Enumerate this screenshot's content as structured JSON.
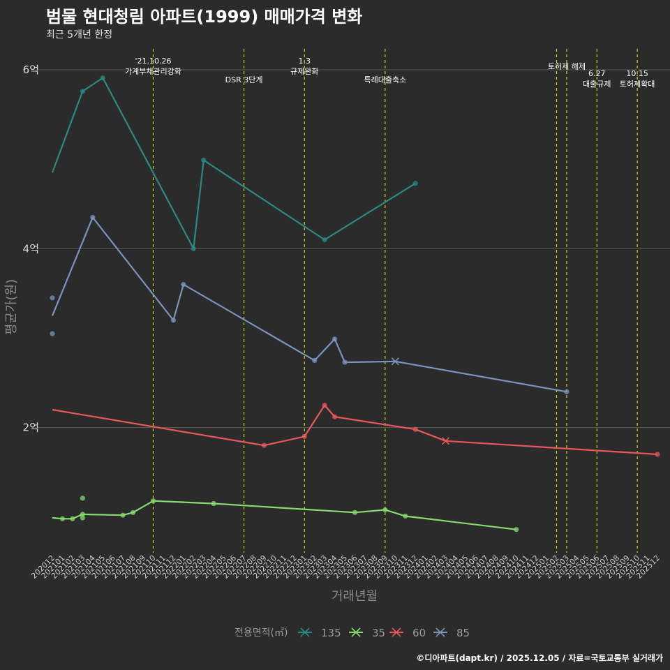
{
  "header": {
    "title": "범물 현대청림 아파트(1999) 매매가격 변화",
    "subtitle": "최근 5개년 한정"
  },
  "footer": {
    "caption": "©디아파트(dapt.kr) / 2025.12.05 / 자료=국토교통부 실거래가"
  },
  "colors": {
    "135": "#2a8a84",
    "35": "#86dc6e",
    "60": "#e85858",
    "85": "#7a94bf",
    "event_line": "#e6e600",
    "grid": "#5a5a5a"
  },
  "chart_data": {
    "type": "line",
    "title": "범물 현대청림 아파트(1999) 매매가격 변화",
    "xlabel": "거래년월",
    "ylabel": "평균가(원)",
    "ylim": [
      0.6,
      6.25
    ],
    "yunit": "억",
    "yticks": [
      {
        "v": 2,
        "label": "2억"
      },
      {
        "v": 4,
        "label": "4억"
      },
      {
        "v": 6,
        "label": "6억"
      }
    ],
    "categories": [
      "202012",
      "202101",
      "202102",
      "202103",
      "202104",
      "202105",
      "202106",
      "202107",
      "202108",
      "202109",
      "202110",
      "202111",
      "202112",
      "202201",
      "202202",
      "202203",
      "202204",
      "202205",
      "202206",
      "202207",
      "202208",
      "202209",
      "202210",
      "202211",
      "202212",
      "202301",
      "202302",
      "202303",
      "202304",
      "202305",
      "202306",
      "202307",
      "202308",
      "202309",
      "202310",
      "202311",
      "202312",
      "202401",
      "202402",
      "202403",
      "202404",
      "202405",
      "202406",
      "202407",
      "202408",
      "202409",
      "202410",
      "202411",
      "202412",
      "202501",
      "202502",
      "202503",
      "202504",
      "202505",
      "202506",
      "202507",
      "202508",
      "202509",
      "202510",
      "202511",
      "202512"
    ],
    "legend": {
      "title": "전용면적(㎡)",
      "position": "bottom",
      "entries": [
        "135",
        "35",
        "60",
        "85"
      ]
    },
    "series": [
      {
        "name": "135",
        "line": [
          [
            "202012",
            4.85
          ],
          [
            "202103",
            5.76
          ],
          [
            "202105",
            5.91
          ],
          [
            "202202",
            4.0
          ],
          [
            "202203",
            4.99
          ],
          [
            "202303",
            4.1
          ],
          [
            "202312",
            4.73
          ]
        ],
        "points": [
          [
            "202103",
            5.76
          ],
          [
            "202105",
            5.91
          ],
          [
            "202202",
            4.0
          ],
          [
            "202203",
            4.99
          ],
          [
            "202303",
            4.1
          ],
          [
            "202312",
            4.73
          ]
        ],
        "crosses": []
      },
      {
        "name": "35",
        "line": [
          [
            "202012",
            0.99
          ],
          [
            "202101",
            0.98
          ],
          [
            "202102",
            0.98
          ],
          [
            "202103",
            1.03
          ],
          [
            "202107",
            1.02
          ],
          [
            "202108",
            1.05
          ],
          [
            "202110",
            1.18
          ],
          [
            "202204",
            1.15
          ],
          [
            "202306",
            1.05
          ],
          [
            "202309",
            1.08
          ],
          [
            "202311",
            1.01
          ],
          [
            "202410",
            0.86
          ]
        ],
        "points": [
          [
            "202101",
            0.98
          ],
          [
            "202102",
            0.98
          ],
          [
            "202103",
            1.21
          ],
          [
            "202103",
            0.99
          ],
          [
            "202103",
            1.03
          ],
          [
            "202107",
            1.02
          ],
          [
            "202108",
            1.05
          ],
          [
            "202110",
            1.18
          ],
          [
            "202204",
            1.15
          ],
          [
            "202306",
            1.05
          ],
          [
            "202309",
            1.08
          ],
          [
            "202311",
            1.01
          ],
          [
            "202410",
            0.86
          ]
        ],
        "crosses": []
      },
      {
        "name": "60",
        "line": [
          [
            "202012",
            2.2
          ],
          [
            "202209",
            1.8
          ],
          [
            "202301",
            1.9
          ],
          [
            "202303",
            2.25
          ],
          [
            "202304",
            2.12
          ],
          [
            "202312",
            1.98
          ],
          [
            "202403",
            1.85
          ],
          [
            "202512",
            1.7
          ]
        ],
        "points": [
          [
            "202209",
            1.8
          ],
          [
            "202301",
            1.9
          ],
          [
            "202303",
            2.25
          ],
          [
            "202304",
            2.12
          ],
          [
            "202312",
            1.98
          ],
          [
            "202512",
            1.7
          ]
        ],
        "crosses": [
          [
            "202403",
            1.85
          ]
        ]
      },
      {
        "name": "85",
        "line": [
          [
            "202012",
            3.25
          ],
          [
            "202104",
            4.35
          ],
          [
            "202112",
            3.2
          ],
          [
            "202201",
            3.6
          ],
          [
            "202302",
            2.75
          ],
          [
            "202304",
            2.99
          ],
          [
            "202305",
            2.73
          ],
          [
            "202310",
            2.74
          ],
          [
            "202503",
            2.4
          ]
        ],
        "points": [
          [
            "202012",
            3.45
          ],
          [
            "202012",
            3.05
          ],
          [
            "202104",
            4.35
          ],
          [
            "202112",
            3.2
          ],
          [
            "202201",
            3.6
          ],
          [
            "202302",
            2.75
          ],
          [
            "202304",
            2.99
          ],
          [
            "202305",
            2.73
          ],
          [
            "202503",
            2.4
          ]
        ],
        "crosses": [
          [
            "202310",
            2.74
          ]
        ]
      }
    ],
    "events": [
      {
        "x": "202110",
        "lines": [
          "'21.10.26",
          "가계부채관리강화"
        ],
        "row": 0
      },
      {
        "x": "202207",
        "lines": [
          "DSR 3단계"
        ],
        "row": 1
      },
      {
        "x": "202301",
        "lines": [
          "1.3",
          "규제완화"
        ],
        "row": 0
      },
      {
        "x": "202309",
        "lines": [
          "특례대출축소"
        ],
        "row": 1
      },
      {
        "x": "202502",
        "lines": [],
        "row": 0
      },
      {
        "x": "202503",
        "lines": [
          "토허제 해제"
        ],
        "row": 2
      },
      {
        "x": "202506",
        "lines": [
          "6.27",
          "대출규제"
        ],
        "row": 3
      },
      {
        "x": "202510",
        "lines": [
          "10.15",
          "토허제확대"
        ],
        "row": 3
      }
    ]
  }
}
